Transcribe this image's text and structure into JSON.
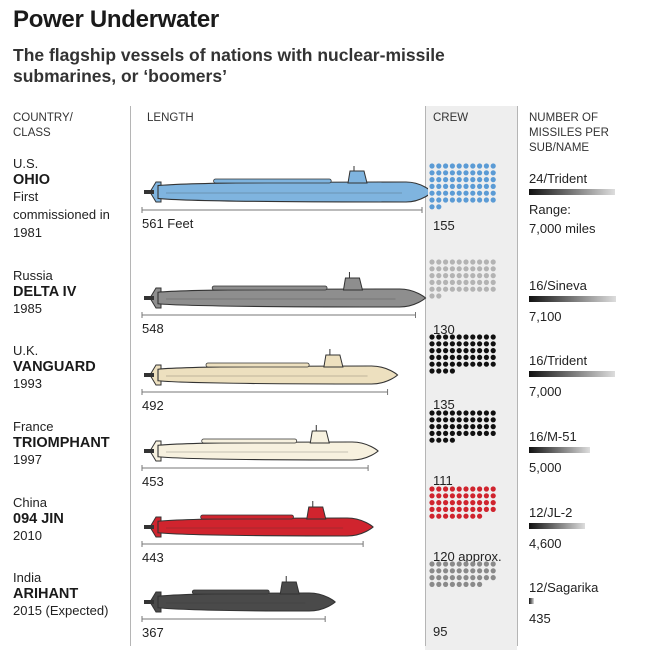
{
  "title": "Power Underwater",
  "subtitle": "The flagship vessels of nations with nuclear-missile submarines, or ‘boomers’",
  "headers": {
    "country": [
      "COUNTRY/",
      "CLASS"
    ],
    "length": "LENGTH",
    "crew": "CREW",
    "missiles": [
      "NUMBER OF",
      "MISSILES PER",
      "SUB/NAME"
    ]
  },
  "chart_data": {
    "type": "table",
    "length_unit_label": "561 Feet",
    "rows": [
      {
        "country": "U.S.",
        "class": "OHIO",
        "year_lines": [
          "First",
          "commissioned in",
          "1981"
        ],
        "length_ft": 561,
        "length_label": "561 Feet",
        "crew": 155,
        "crew_label": "155",
        "missiles": 24,
        "missile_label": "24/Trident",
        "range_lines": [
          "Range:",
          "7,000 miles"
        ],
        "range_miles": 7000,
        "color": "#7fb4df"
      },
      {
        "country": "Russia",
        "class": "DELTA IV",
        "year_lines": [
          "1985"
        ],
        "length_ft": 548,
        "length_label": "548",
        "crew": 130,
        "crew_label": "130",
        "missiles": 16,
        "missile_label": "16/Sineva",
        "range_lines": [
          "7,100"
        ],
        "range_miles": 7100,
        "color": "#8e8e8e"
      },
      {
        "country": "U.K.",
        "class": "VANGUARD",
        "year_lines": [
          "1993"
        ],
        "length_ft": 492,
        "length_label": "492",
        "crew": 135,
        "crew_label": "135",
        "missiles": 16,
        "missile_label": "16/Trident",
        "range_lines": [
          "7,000"
        ],
        "range_miles": 7000,
        "color": "#ede0bf"
      },
      {
        "country": "France",
        "class": "TRIOMPHANT",
        "year_lines": [
          "1997"
        ],
        "length_ft": 453,
        "length_label": "453",
        "crew": 111,
        "crew_label": "111",
        "missiles": 16,
        "missile_label": "16/M-51",
        "range_lines": [
          "5,000"
        ],
        "range_miles": 5000,
        "color": "#f7f1df"
      },
      {
        "country": "China",
        "class": "094 JIN",
        "year_lines": [
          "2010"
        ],
        "length_ft": 443,
        "length_label": "443",
        "crew": 120,
        "crew_label": "120 approx.",
        "missiles": 12,
        "missile_label": "12/JL-2",
        "range_lines": [
          "4,600"
        ],
        "range_miles": 4600,
        "color": "#d0242e"
      },
      {
        "country": "India",
        "class": "ARIHANT",
        "year_lines": [
          "2015 (Expected)"
        ],
        "length_ft": 367,
        "length_label": "367",
        "crew": 95,
        "crew_label": "95",
        "missiles": 12,
        "missile_label": "12/Sagarika",
        "range_lines": [
          "435"
        ],
        "range_miles": 435,
        "color": "#4a4a4a"
      }
    ],
    "crew_dot_colors": [
      "#5b9bd5",
      "#b3b3b3",
      "#111111",
      "#111111",
      "#d0242e",
      "#8a8a8a"
    ]
  }
}
